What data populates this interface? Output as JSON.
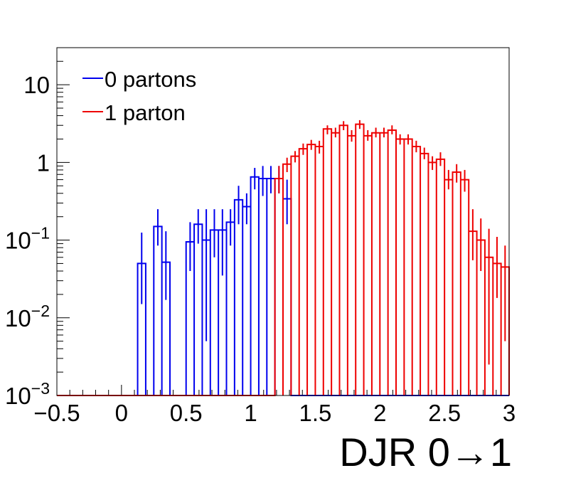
{
  "chart_data": {
    "type": "line",
    "subtype": "histogram-step",
    "xlabel": "DJR 0→1",
    "ylabel": "",
    "title": "",
    "xlim": [
      -0.5,
      3
    ],
    "ylim": [
      0.001,
      30
    ],
    "yscale": "log",
    "bin_width": 0.0625,
    "x_ticks": [
      {
        "value": -0.5,
        "label": "−0.5"
      },
      {
        "value": 0,
        "label": "0"
      },
      {
        "value": 0.5,
        "label": "0.5"
      },
      {
        "value": 1,
        "label": "1"
      },
      {
        "value": 1.5,
        "label": "1.5"
      },
      {
        "value": 2,
        "label": "2"
      },
      {
        "value": 2.5,
        "label": "2.5"
      },
      {
        "value": 3,
        "label": "3"
      }
    ],
    "y_ticks": [
      {
        "value": 0.001,
        "base": "10",
        "exp": "−3"
      },
      {
        "value": 0.01,
        "base": "10",
        "exp": "−2"
      },
      {
        "value": 0.1,
        "base": "10",
        "exp": "−1"
      },
      {
        "value": 1,
        "base": "1",
        "exp": ""
      },
      {
        "value": 10,
        "base": "10",
        "exp": ""
      }
    ],
    "legend_position": "top-left",
    "series": [
      {
        "name": "0 partons",
        "color": "#0000ee",
        "bins": [
          {
            "x": 0.125,
            "y": 0.05,
            "err_lo": 0.015,
            "err_hi": 0.125
          },
          {
            "x": 0.1875,
            "y": 0.001
          },
          {
            "x": 0.25,
            "y": 0.15,
            "err_lo": 0.085,
            "err_hi": 0.25
          },
          {
            "x": 0.3125,
            "y": 0.052,
            "err_lo": 0.017,
            "err_hi": 0.13
          },
          {
            "x": 0.375,
            "y": 0.001
          },
          {
            "x": 0.4375,
            "y": 0.001
          },
          {
            "x": 0.5,
            "y": 0.095,
            "err_lo": 0.04,
            "err_hi": 0.17
          },
          {
            "x": 0.5625,
            "y": 0.16,
            "err_lo": 0.09,
            "err_hi": 0.25
          },
          {
            "x": 0.625,
            "y": 0.1,
            "err_lo": 0.005,
            "err_hi": 0.25
          },
          {
            "x": 0.6875,
            "y": 0.135,
            "err_lo": 0.06,
            "err_hi": 0.25
          },
          {
            "x": 0.75,
            "y": 0.135,
            "err_lo": 0.035,
            "err_hi": 0.25
          },
          {
            "x": 0.8125,
            "y": 0.17,
            "err_lo": 0.085,
            "err_hi": 0.25
          },
          {
            "x": 0.875,
            "y": 0.33,
            "err_lo": 0.16,
            "err_hi": 0.5
          },
          {
            "x": 0.9375,
            "y": 0.27,
            "err_lo": 0.16,
            "err_hi": 0.4
          },
          {
            "x": 1.0,
            "y": 0.65,
            "err_lo": 0.45,
            "err_hi": 0.85
          },
          {
            "x": 1.0625,
            "y": 0.62,
            "err_lo": 0.37,
            "err_hi": 0.9
          },
          {
            "x": 1.125,
            "y": 0.62,
            "err_lo": 0.4,
            "err_hi": 0.9
          },
          {
            "x": 1.1875,
            "y": 0.62,
            "err_lo": 0.4,
            "err_hi": 0.9
          },
          {
            "x": 1.25,
            "y": 0.34,
            "err_lo": 0.16,
            "err_hi": 0.6
          },
          {
            "x": 1.3125,
            "y": 0.001
          }
        ]
      },
      {
        "name": "1 parton",
        "color": "#ee0000",
        "bins": [
          {
            "x": 1.1875,
            "y": 0.62,
            "err_lo": 0.4,
            "err_hi": 0.9
          },
          {
            "x": 1.25,
            "y": 0.95,
            "err_lo": 0.75,
            "err_hi": 1.15
          },
          {
            "x": 1.3125,
            "y": 1.2,
            "err_lo": 1.0,
            "err_hi": 1.4
          },
          {
            "x": 1.375,
            "y": 1.5,
            "err_lo": 1.25,
            "err_hi": 1.75
          },
          {
            "x": 1.4375,
            "y": 1.7,
            "err_lo": 1.45,
            "err_hi": 1.95
          },
          {
            "x": 1.5,
            "y": 1.6,
            "err_lo": 1.3,
            "err_hi": 1.9
          },
          {
            "x": 1.5625,
            "y": 2.7,
            "err_lo": 2.3,
            "err_hi": 3.0
          },
          {
            "x": 1.625,
            "y": 2.4,
            "err_lo": 2.1,
            "err_hi": 2.8
          },
          {
            "x": 1.6875,
            "y": 3.0,
            "err_lo": 2.6,
            "err_hi": 3.4
          },
          {
            "x": 1.75,
            "y": 2.2,
            "err_lo": 1.85,
            "err_hi": 2.6
          },
          {
            "x": 1.8125,
            "y": 3.1,
            "err_lo": 2.7,
            "err_hi": 3.5
          },
          {
            "x": 1.875,
            "y": 2.2,
            "err_lo": 1.9,
            "err_hi": 2.6
          },
          {
            "x": 1.9375,
            "y": 2.4,
            "err_lo": 2.1,
            "err_hi": 2.8
          },
          {
            "x": 2.0,
            "y": 2.4,
            "err_lo": 2.1,
            "err_hi": 2.8
          },
          {
            "x": 2.0625,
            "y": 2.6,
            "err_lo": 2.3,
            "err_hi": 3.0
          },
          {
            "x": 2.125,
            "y": 2.0,
            "err_lo": 1.7,
            "err_hi": 2.3
          },
          {
            "x": 2.1875,
            "y": 2.0,
            "err_lo": 1.7,
            "err_hi": 2.3
          },
          {
            "x": 2.25,
            "y": 1.6,
            "err_lo": 1.35,
            "err_hi": 1.9
          },
          {
            "x": 2.3125,
            "y": 1.3,
            "err_lo": 1.1,
            "err_hi": 1.55
          },
          {
            "x": 2.375,
            "y": 1.0,
            "err_lo": 0.8,
            "err_hi": 1.2
          },
          {
            "x": 2.4375,
            "y": 1.1,
            "err_lo": 0.9,
            "err_hi": 1.35
          },
          {
            "x": 2.5,
            "y": 0.6,
            "err_lo": 0.45,
            "err_hi": 0.8
          },
          {
            "x": 2.5625,
            "y": 0.75,
            "err_lo": 0.55,
            "err_hi": 0.95
          },
          {
            "x": 2.625,
            "y": 0.6,
            "err_lo": 0.42,
            "err_hi": 0.8
          },
          {
            "x": 2.6875,
            "y": 0.13,
            "err_lo": 0.055,
            "err_hi": 0.25
          },
          {
            "x": 2.75,
            "y": 0.1,
            "err_lo": 0.04,
            "err_hi": 0.19
          },
          {
            "x": 2.8125,
            "y": 0.06,
            "err_lo": 0.0025,
            "err_hi": 0.14
          },
          {
            "x": 2.875,
            "y": 0.05,
            "err_lo": 0.018,
            "err_hi": 0.11
          },
          {
            "x": 2.9375,
            "y": 0.045,
            "err_lo": 0.005,
            "err_hi": 0.085
          }
        ]
      }
    ]
  }
}
